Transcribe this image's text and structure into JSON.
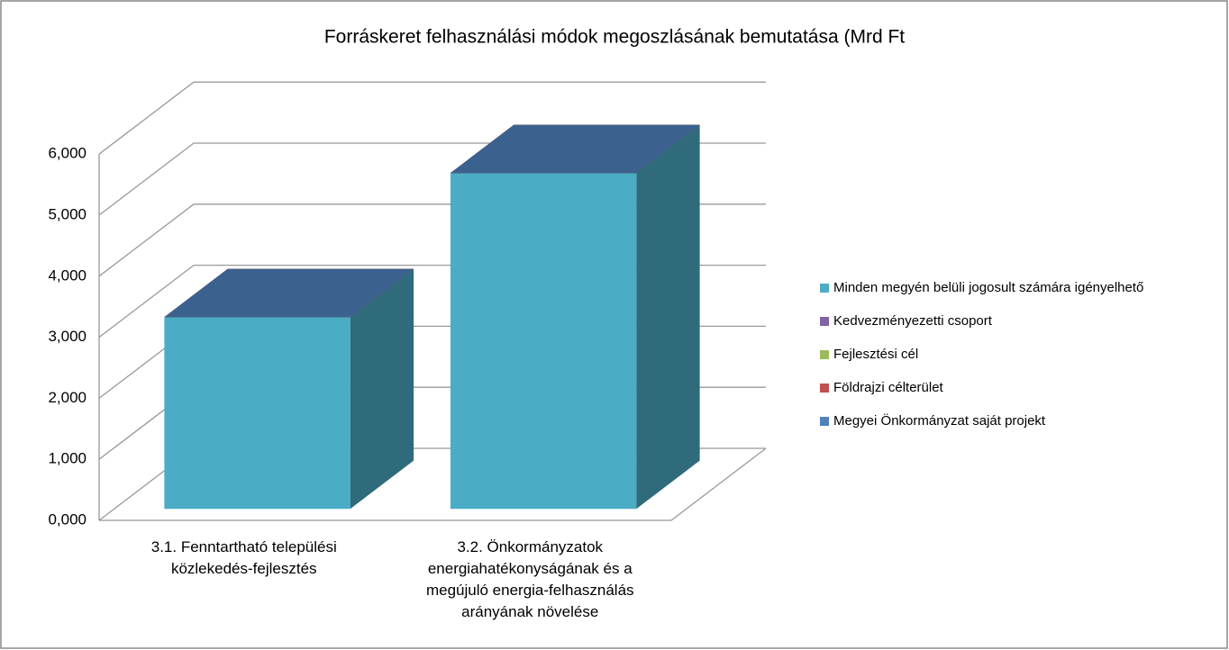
{
  "chart_data": {
    "type": "bar3d",
    "title": "Forráskeret felhasználási módok megoszlásának bemutatása (Mrd Ft",
    "categories": [
      "3.1. Fenntartható települési közlekedés-fejlesztés",
      "3.2. Önkormányzatok energiahatékonyságának és a megújuló energia-felhasználás arányának növelése"
    ],
    "series": [
      {
        "name": "Minden megyén belüli jogosult számára igényelhető",
        "color": "#4bacc6",
        "values": [
          3.14,
          5.5
        ]
      },
      {
        "name": "Kedvezményezetti csoport",
        "color": "#8064a2",
        "values": [
          0,
          0
        ]
      },
      {
        "name": "Fejlesztési cél",
        "color": "#9bbb59",
        "values": [
          0,
          0
        ]
      },
      {
        "name": "Földrajzi célterület",
        "color": "#c0504d",
        "values": [
          0,
          0
        ]
      },
      {
        "name": "Megyei Önkormányzat saját projekt",
        "color": "#4f81bd",
        "values": [
          0,
          0
        ]
      }
    ],
    "ylim": [
      0,
      6
    ],
    "yticks": [
      {
        "value": 0,
        "label": "0,000"
      },
      {
        "value": 1,
        "label": "1,000"
      },
      {
        "value": 2,
        "label": "2,000"
      },
      {
        "value": 3,
        "label": "3,000"
      },
      {
        "value": 4,
        "label": "4,000"
      },
      {
        "value": 5,
        "label": "5,000"
      },
      {
        "value": 6,
        "label": "6,000"
      }
    ],
    "grid": true,
    "legend": "right"
  }
}
